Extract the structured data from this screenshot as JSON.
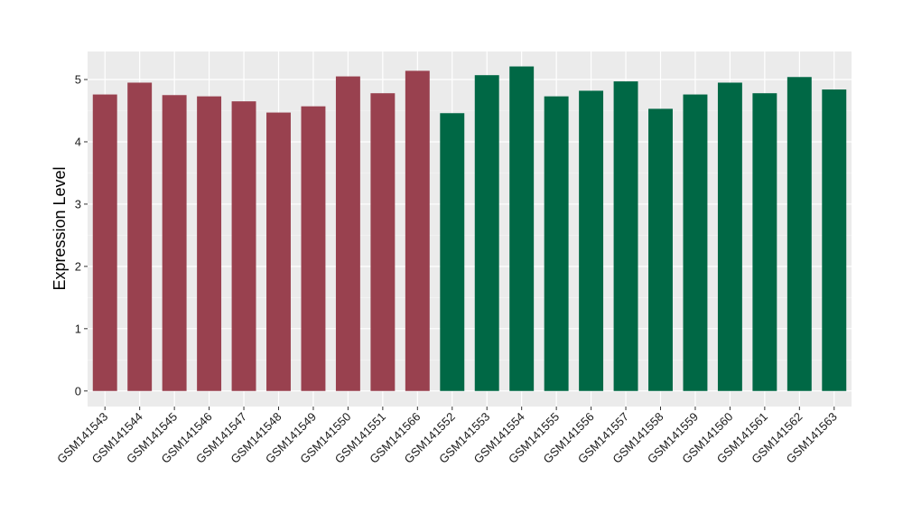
{
  "chart_data": {
    "type": "bar",
    "title": "",
    "xlabel": "",
    "ylabel": "Expression Level",
    "ylim": [
      -0.25,
      5.45
    ],
    "yticks": [
      0,
      1,
      2,
      3,
      4,
      5
    ],
    "grid": true,
    "background": "#ebebeb",
    "categories": [
      "GSM141543",
      "GSM141544",
      "GSM141545",
      "GSM141546",
      "GSM141547",
      "GSM141548",
      "GSM141549",
      "GSM141550",
      "GSM141551",
      "GSM141566",
      "GSM141552",
      "GSM141553",
      "GSM141554",
      "GSM141555",
      "GSM141556",
      "GSM141557",
      "GSM141558",
      "GSM141559",
      "GSM141560",
      "GSM141561",
      "GSM141562",
      "GSM141563"
    ],
    "values": [
      4.76,
      4.95,
      4.75,
      4.73,
      4.65,
      4.47,
      4.57,
      5.05,
      4.78,
      5.14,
      4.46,
      5.07,
      5.21,
      4.73,
      4.82,
      4.97,
      4.53,
      4.76,
      4.95,
      4.78,
      5.04,
      4.84
    ],
    "groups": [
      "g1",
      "g1",
      "g1",
      "g1",
      "g1",
      "g1",
      "g1",
      "g1",
      "g1",
      "g1",
      "g2",
      "g2",
      "g2",
      "g2",
      "g2",
      "g2",
      "g2",
      "g2",
      "g2",
      "g2",
      "g2",
      "g2"
    ],
    "group_colors": {
      "g1": "#99414f",
      "g2": "#006845"
    }
  }
}
